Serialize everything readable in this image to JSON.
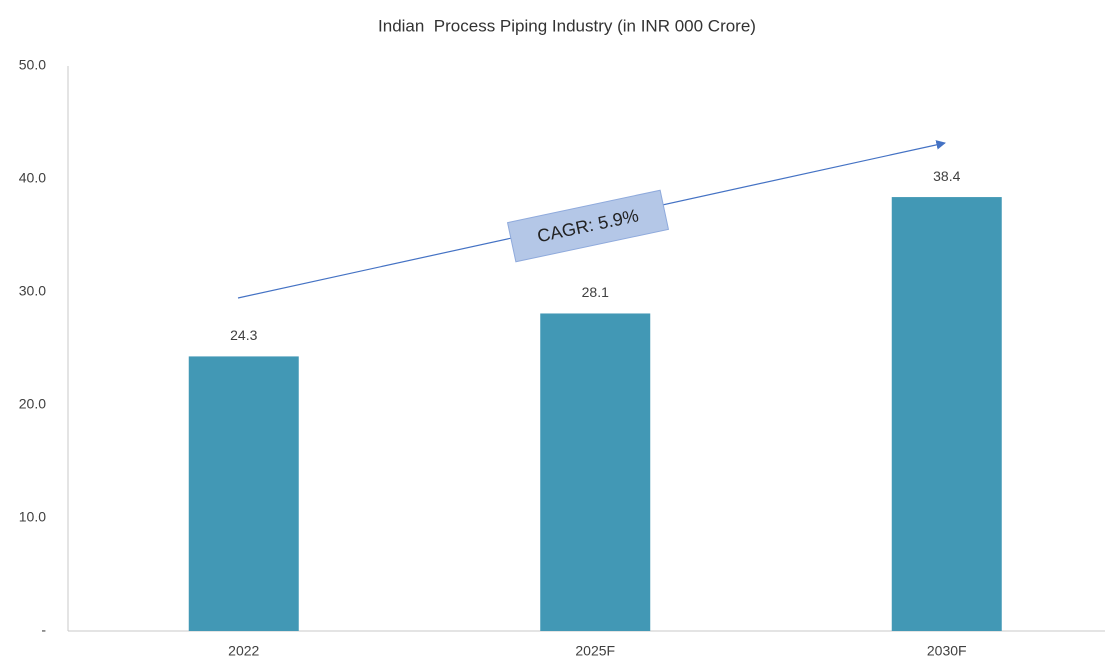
{
  "chart_data": {
    "type": "bar",
    "title": "Indian  Process Piping Industry (in INR 000 Crore)",
    "categories": [
      "2022",
      "2025F",
      "2030F"
    ],
    "values": [
      24.3,
      28.1,
      38.4
    ],
    "color": "#4298b5",
    "ylim": [
      0,
      50
    ],
    "yticks": [
      {
        "value": 0,
        "label": "-"
      },
      {
        "value": 10,
        "label": "10.0"
      },
      {
        "value": 20,
        "label": "20.0"
      },
      {
        "value": 30,
        "label": "30.0"
      },
      {
        "value": 40,
        "label": "40.0"
      },
      {
        "value": 50,
        "label": "50.0"
      }
    ],
    "annotation": "CAGR: 5.9%",
    "grid": false
  }
}
